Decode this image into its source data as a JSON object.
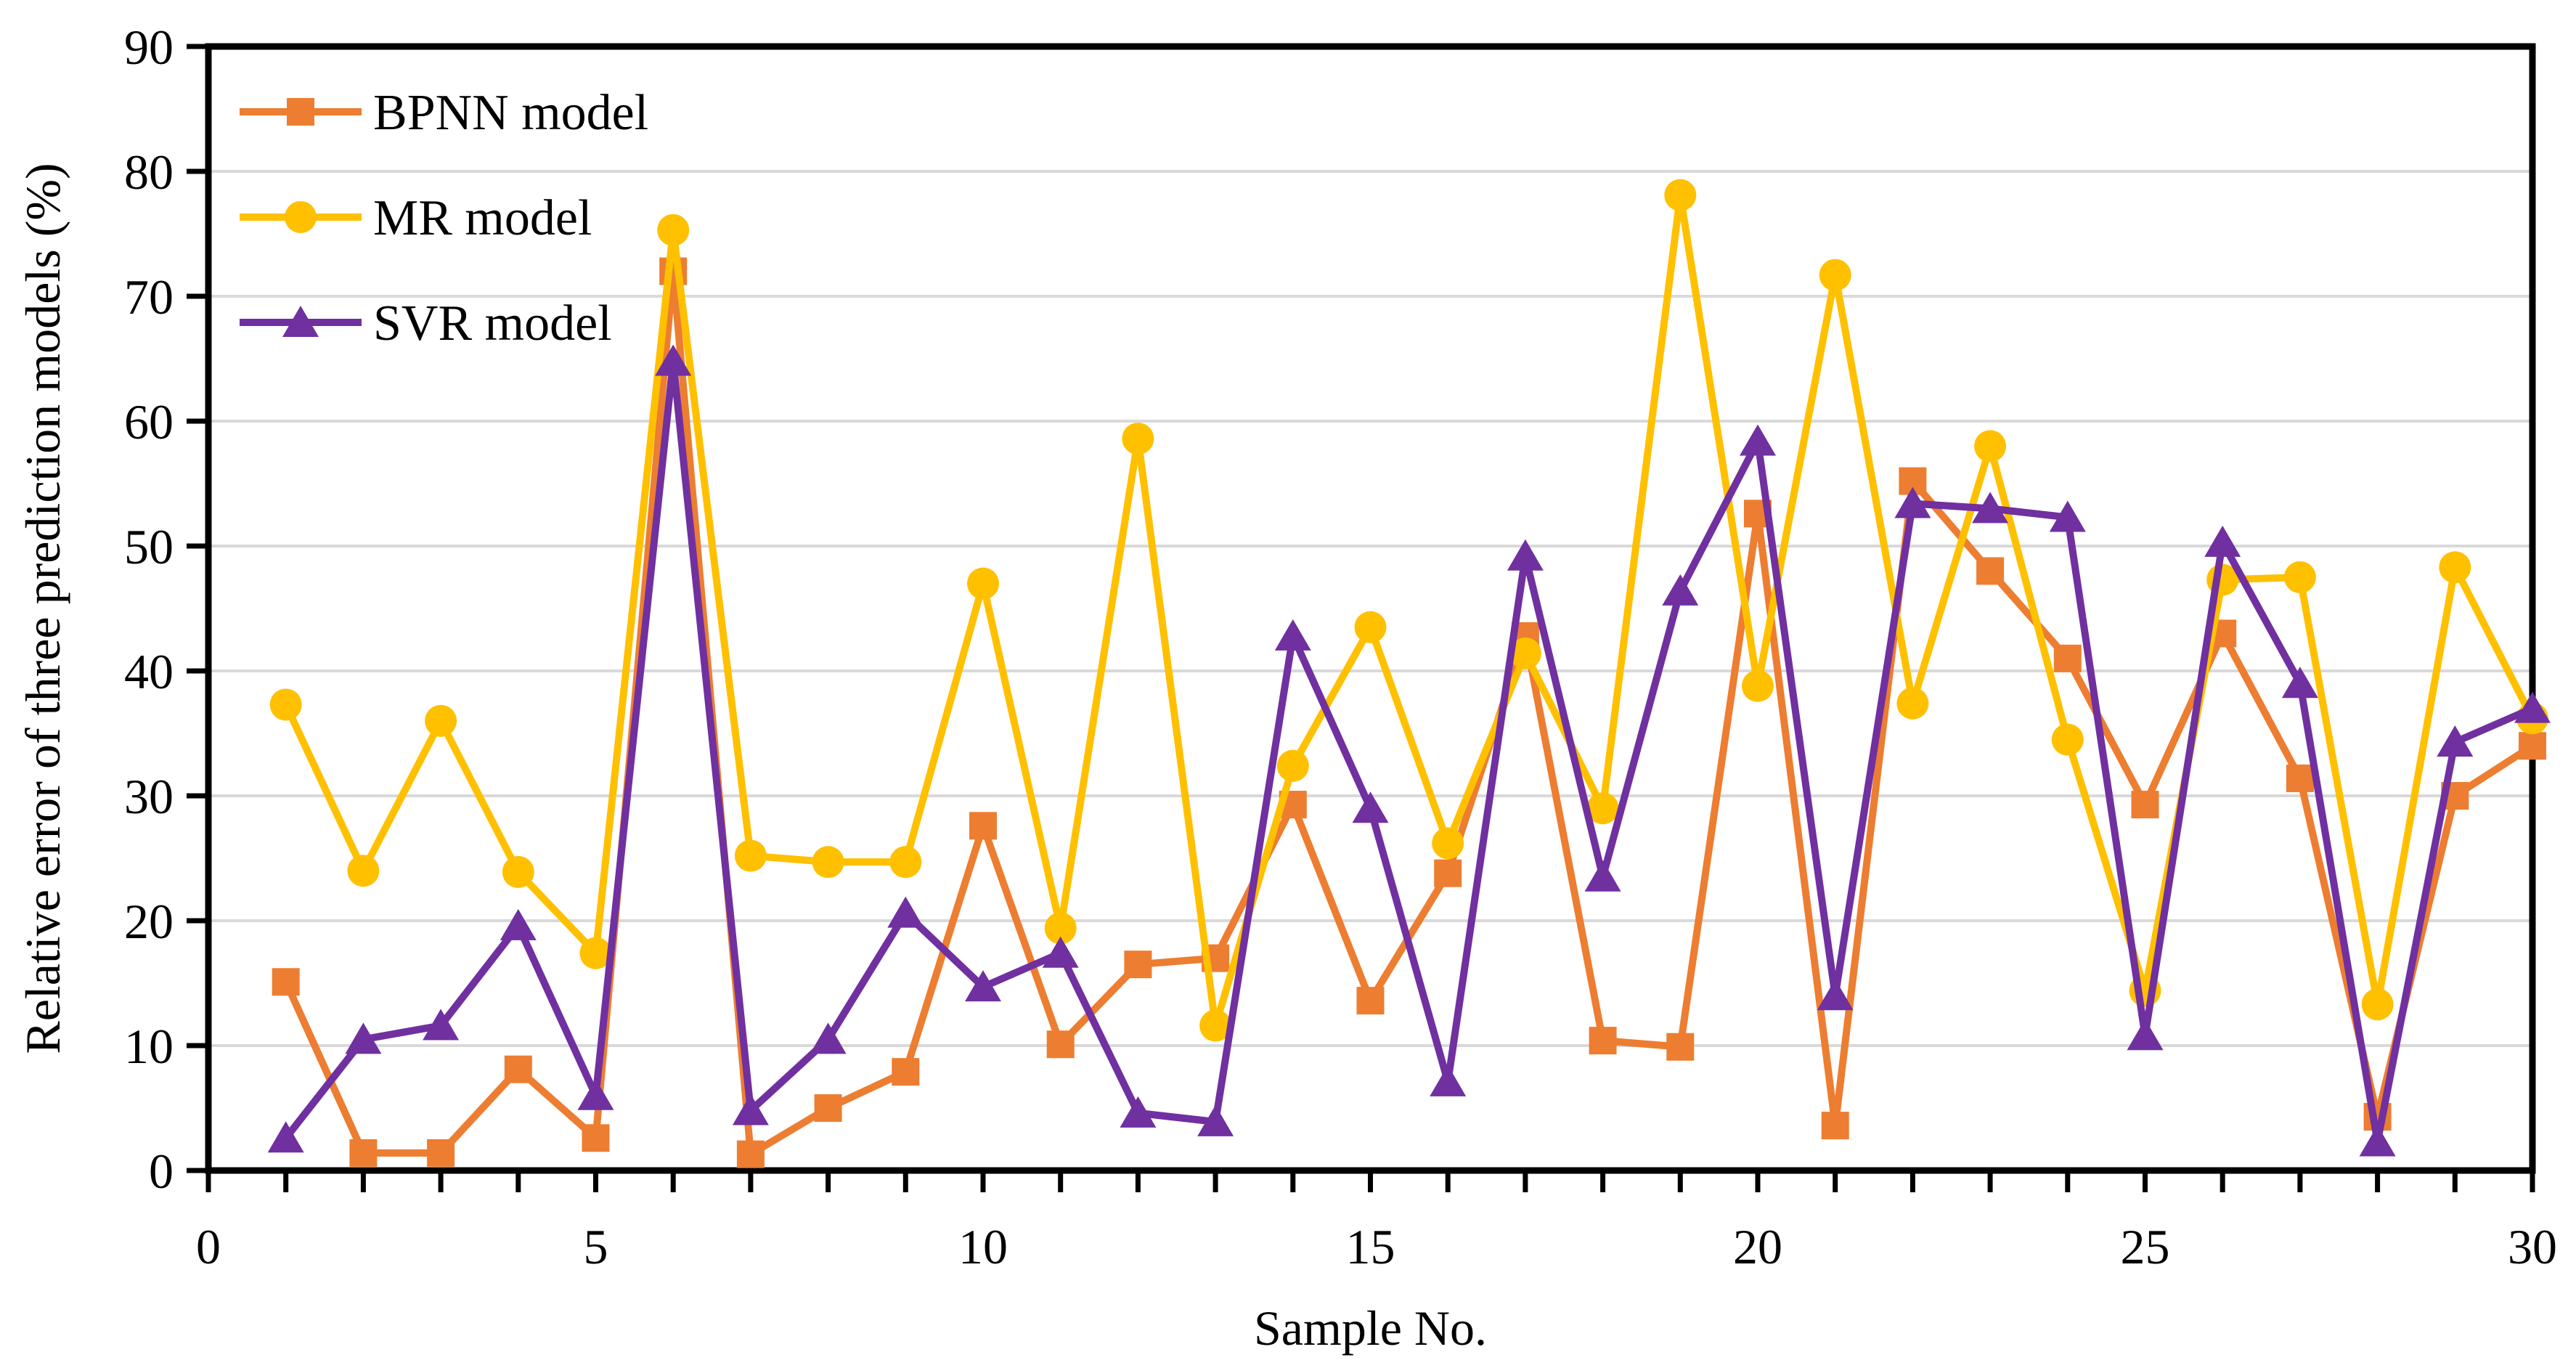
{
  "figure": {
    "background": "#ffffff",
    "description_ticks_font": "serif"
  },
  "chart_data": {
    "type": "line",
    "title": "",
    "xlabel": "Sample No.",
    "ylabel": "Relative error of three prediction models (%)",
    "xlim": [
      0,
      30
    ],
    "ylim": [
      0,
      90
    ],
    "x_tick_labels": [
      0,
      5,
      10,
      15,
      20,
      25,
      30
    ],
    "x_minor_tick_step": 1,
    "y_tick_labels": [
      0,
      10,
      20,
      30,
      40,
      50,
      60,
      70,
      80,
      90
    ],
    "grid": "horizontal",
    "gridline_color": "#d9d9d9",
    "axis_color": "#000000",
    "legend_position": "top-left-inside",
    "x": [
      1,
      2,
      3,
      4,
      5,
      6,
      7,
      8,
      9,
      10,
      11,
      12,
      13,
      14,
      15,
      16,
      17,
      18,
      19,
      20,
      21,
      22,
      23,
      24,
      25,
      26,
      27,
      28,
      29,
      30
    ],
    "series": [
      {
        "name": "BPNN model",
        "color": "#ED7D31",
        "marker": "square",
        "values": [
          15.1,
          1.4,
          1.4,
          8.1,
          2.6,
          72.0,
          1.3,
          5.0,
          7.9,
          27.6,
          10.1,
          16.5,
          17.0,
          29.3,
          13.6,
          23.8,
          42.8,
          10.4,
          9.9,
          52.6,
          3.6,
          55.2,
          48.0,
          41.0,
          29.3,
          43.0,
          31.4,
          4.3,
          30.0,
          34.0
        ]
      },
      {
        "name": "MR model",
        "color": "#FFC000",
        "marker": "circle",
        "values": [
          37.3,
          24.0,
          36.0,
          23.9,
          17.4,
          75.3,
          25.2,
          24.7,
          24.7,
          47.0,
          19.4,
          58.6,
          11.6,
          32.4,
          43.5,
          26.2,
          41.4,
          29.0,
          78.1,
          38.8,
          71.7,
          37.4,
          58.0,
          34.5,
          14.4,
          47.3,
          47.5,
          13.3,
          48.3,
          36.2
        ]
      },
      {
        "name": "SVR model",
        "color": "#7030A0",
        "marker": "triangle",
        "values": [
          2.6,
          10.5,
          11.6,
          19.6,
          6.0,
          64.8,
          4.8,
          10.5,
          20.6,
          14.7,
          17.4,
          4.6,
          3.9,
          42.8,
          29.0,
          7.1,
          49.2,
          23.5,
          46.4,
          58.4,
          14.0,
          53.4,
          53.0,
          52.3,
          10.8,
          50.3,
          39.0,
          2.3,
          34.3,
          37.0
        ]
      }
    ]
  }
}
